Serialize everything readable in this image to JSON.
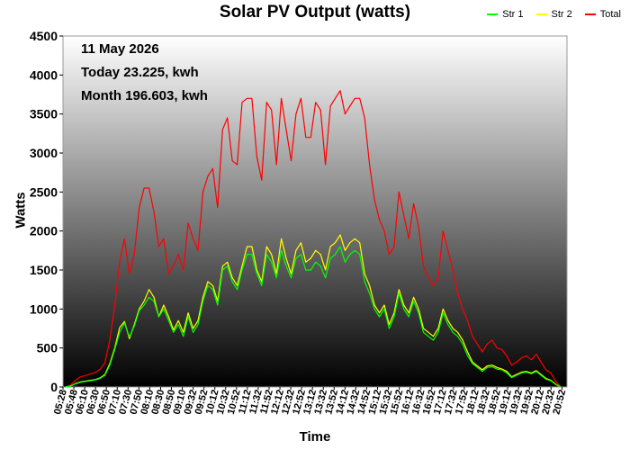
{
  "chart_data": {
    "type": "line",
    "title": "Solar PV Output (watts)",
    "xlabel": "Time",
    "ylabel": "Watts",
    "ylim": [
      0,
      4500
    ],
    "y_ticks": [
      "0",
      "500",
      "1000",
      "1500",
      "2000",
      "2500",
      "3000",
      "3500",
      "4000",
      "4500"
    ],
    "x_ticks": [
      "05:28",
      "05:48",
      "06:10",
      "06:30",
      "06:50",
      "07:10",
      "07:30",
      "07:50",
      "08:10",
      "08:30",
      "08:50",
      "09:10",
      "09:32",
      "09:52",
      "10:12",
      "10:32",
      "10:52",
      "11:12",
      "11:32",
      "11:52",
      "12:12",
      "12:32",
      "12:52",
      "13:12",
      "13:32",
      "13:52",
      "14:12",
      "14:32",
      "14:52",
      "15:12",
      "15:32",
      "15:52",
      "16:12",
      "16:32",
      "16:52",
      "17:12",
      "17:32",
      "17:52",
      "18:12",
      "18:32",
      "18:52",
      "19:12",
      "19:32",
      "19:52",
      "20:12",
      "20:32",
      "20:52"
    ],
    "legend_position": "top-right",
    "info_lines": [
      "11 May 2026",
      "Today 23.225, kwh",
      "Month 196.603, kwh"
    ],
    "series": [
      {
        "name": "Str 1",
        "color": "#00ff00",
        "values": [
          0,
          10,
          40,
          60,
          70,
          80,
          90,
          110,
          150,
          280,
          480,
          700,
          820,
          640,
          780,
          980,
          1050,
          1150,
          1100,
          900,
          1000,
          850,
          700,
          800,
          650,
          900,
          700,
          800,
          1100,
          1300,
          1250,
          1050,
          1500,
          1550,
          1350,
          1250,
          1500,
          1700,
          1700,
          1450,
          1300,
          1700,
          1600,
          1400,
          1750,
          1550,
          1400,
          1650,
          1700,
          1500,
          1500,
          1600,
          1550,
          1400,
          1650,
          1700,
          1800,
          1600,
          1700,
          1750,
          1700,
          1350,
          1200,
          1000,
          900,
          1000,
          750,
          900,
          1200,
          1000,
          900,
          1100,
          950,
          700,
          650,
          600,
          700,
          950,
          800,
          700,
          650,
          550,
          400,
          300,
          250,
          200,
          250,
          260,
          230,
          220,
          180,
          120,
          150,
          180,
          190,
          170,
          200,
          150,
          100,
          80,
          30,
          0
        ]
      },
      {
        "name": "Str 2",
        "color": "#ffff00",
        "values": [
          0,
          12,
          45,
          65,
          75,
          85,
          95,
          115,
          160,
          300,
          500,
          760,
          840,
          620,
          800,
          1000,
          1100,
          1250,
          1150,
          900,
          1050,
          900,
          730,
          850,
          700,
          950,
          750,
          850,
          1150,
          1350,
          1300,
          1100,
          1550,
          1600,
          1400,
          1300,
          1550,
          1800,
          1800,
          1500,
          1350,
          1800,
          1700,
          1450,
          1900,
          1650,
          1450,
          1750,
          1850,
          1600,
          1650,
          1750,
          1700,
          1500,
          1800,
          1850,
          1950,
          1750,
          1850,
          1900,
          1850,
          1450,
          1300,
          1050,
          950,
          1050,
          800,
          950,
          1250,
          1050,
          950,
          1150,
          1000,
          750,
          700,
          650,
          750,
          1000,
          850,
          750,
          700,
          600,
          450,
          320,
          270,
          220,
          270,
          280,
          250,
          230,
          200,
          130,
          160,
          190,
          200,
          180,
          210,
          160,
          110,
          85,
          35,
          0
        ]
      },
      {
        "name": "Total",
        "color": "#ff0000",
        "values": [
          0,
          25,
          85,
          130,
          145,
          165,
          185,
          225,
          310,
          600,
          1050,
          1600,
          1900,
          1450,
          1700,
          2300,
          2550,
          2550,
          2250,
          1800,
          1900,
          1450,
          1550,
          1700,
          1500,
          2100,
          1900,
          1750,
          2500,
          2700,
          2800,
          2300,
          3300,
          3450,
          2900,
          2850,
          3650,
          3700,
          3700,
          2950,
          2650,
          3650,
          3550,
          2850,
          3700,
          3300,
          2900,
          3500,
          3700,
          3200,
          3200,
          3650,
          3550,
          2850,
          3600,
          3700,
          3800,
          3500,
          3600,
          3700,
          3700,
          3450,
          2850,
          2400,
          2150,
          2000,
          1700,
          1800,
          2500,
          2200,
          1900,
          2350,
          2050,
          1550,
          1400,
          1300,
          1400,
          2000,
          1750,
          1500,
          1200,
          1000,
          850,
          650,
          550,
          450,
          550,
          600,
          500,
          480,
          400,
          280,
          320,
          370,
          400,
          350,
          420,
          320,
          220,
          180,
          70,
          0
        ]
      }
    ]
  }
}
